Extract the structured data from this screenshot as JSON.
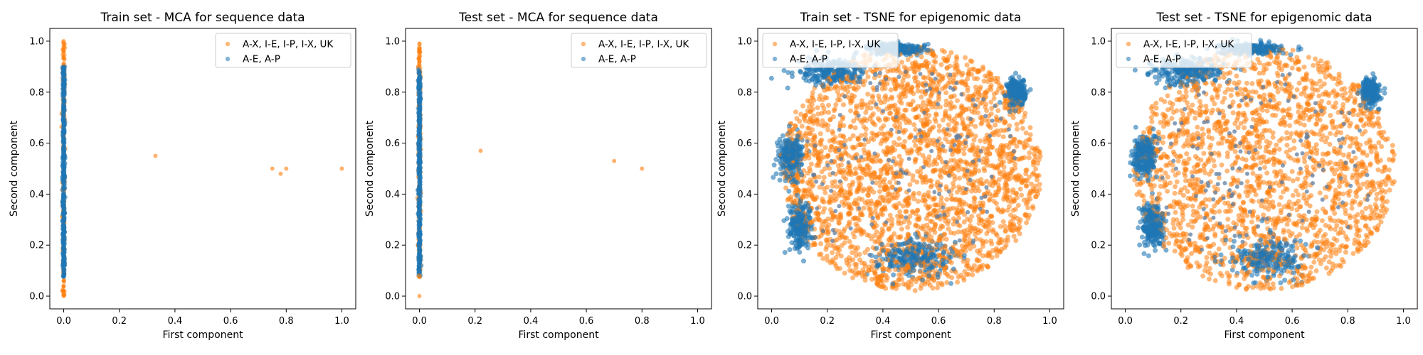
{
  "colors": {
    "orange": "#ff7f0e",
    "blue": "#1f77b4"
  },
  "legend_entries": [
    "A-X, I-E, I-P, I-X, UK",
    "A-E, A-P"
  ],
  "chart_data": [
    {
      "type": "scatter",
      "title": "Train set - MCA for sequence data",
      "xlabel": "First component",
      "ylabel": "Second component",
      "xlim": [
        -0.05,
        1.05
      ],
      "ylim": [
        -0.05,
        1.05
      ],
      "xticks": [
        "0.0",
        "0.2",
        "0.4",
        "0.6",
        "0.8",
        "1.0"
      ],
      "yticks": [
        "0.0",
        "0.2",
        "0.4",
        "0.6",
        "0.8",
        "1.0"
      ],
      "legend_position": "top-right",
      "series": [
        {
          "name": "A-X, I-E, I-P, I-X, UK",
          "color": "#ff7f0e",
          "points": [
            [
              0.0,
              0.0
            ],
            [
              0.0,
              0.02
            ],
            [
              0.0,
              0.04
            ],
            [
              0.0,
              0.06
            ],
            [
              0.0,
              0.94
            ],
            [
              0.0,
              0.96
            ],
            [
              0.0,
              0.98
            ],
            [
              0.0,
              1.0
            ],
            [
              0.33,
              0.55
            ],
            [
              0.75,
              0.5
            ],
            [
              0.78,
              0.48
            ],
            [
              0.8,
              0.5
            ],
            [
              1.0,
              0.5
            ]
          ],
          "band": {
            "x": 0.0,
            "y_range": [
              0.0,
              1.0
            ],
            "density": "high"
          }
        },
        {
          "name": "A-E, A-P",
          "color": "#1f77b4",
          "points": [],
          "band": {
            "x": 0.0,
            "y_range": [
              0.07,
              0.9
            ],
            "density": "high"
          }
        }
      ]
    },
    {
      "type": "scatter",
      "title": "Test set - MCA for sequence data",
      "xlabel": "First component",
      "ylabel": "Second component",
      "xlim": [
        -0.05,
        1.05
      ],
      "ylim": [
        -0.05,
        1.05
      ],
      "xticks": [
        "0.0",
        "0.2",
        "0.4",
        "0.6",
        "0.8",
        "1.0"
      ],
      "yticks": [
        "0.0",
        "0.2",
        "0.4",
        "0.6",
        "0.8",
        "1.0"
      ],
      "legend_position": "top-right",
      "series": [
        {
          "name": "A-X, I-E, I-P, I-X, UK",
          "color": "#ff7f0e",
          "points": [
            [
              0.0,
              0.0
            ],
            [
              0.0,
              0.08
            ],
            [
              0.0,
              0.92
            ],
            [
              0.0,
              0.96
            ],
            [
              0.0,
              0.99
            ],
            [
              0.22,
              0.57
            ],
            [
              0.7,
              0.53
            ],
            [
              0.8,
              0.5
            ]
          ],
          "band": {
            "x": 0.0,
            "y_range": [
              0.07,
              0.99
            ],
            "density": "high"
          }
        },
        {
          "name": "A-E, A-P",
          "color": "#1f77b4",
          "points": [],
          "band": {
            "x": 0.0,
            "y_range": [
              0.08,
              0.89
            ],
            "density": "high"
          }
        }
      ]
    },
    {
      "type": "scatter",
      "title": "Train set - TSNE for epigenomic data",
      "xlabel": "First component",
      "ylabel": "Second component",
      "xlim": [
        -0.05,
        1.05
      ],
      "ylim": [
        -0.05,
        1.05
      ],
      "xticks": [
        "0.0",
        "0.2",
        "0.4",
        "0.6",
        "0.8",
        "1.0"
      ],
      "yticks": [
        "0.0",
        "0.2",
        "0.4",
        "0.6",
        "0.8",
        "1.0"
      ],
      "legend_position": "top-left",
      "series": [
        {
          "name": "A-X, I-E, I-P, I-X, UK",
          "color": "#ff7f0e",
          "cloud": {
            "center": [
              0.5,
              0.5
            ],
            "radius": 0.47,
            "density": "very high"
          }
        },
        {
          "name": "A-E, A-P",
          "color": "#1f77b4",
          "clusters": [
            {
              "center": [
                0.22,
                0.88
              ],
              "spread": [
                0.12,
                0.05
              ]
            },
            {
              "center": [
                0.07,
                0.55
              ],
              "spread": [
                0.04,
                0.08
              ]
            },
            {
              "center": [
                0.1,
                0.28
              ],
              "spread": [
                0.04,
                0.08
              ]
            },
            {
              "center": [
                0.52,
                0.15
              ],
              "spread": [
                0.12,
                0.07
              ]
            },
            {
              "center": [
                0.88,
                0.8
              ],
              "spread": [
                0.03,
                0.05
              ]
            },
            {
              "center": [
                0.45,
                0.97
              ],
              "spread": [
                0.1,
                0.02
              ]
            }
          ]
        }
      ]
    },
    {
      "type": "scatter",
      "title": "Test set - TSNE for epigenomic data",
      "xlabel": "First component",
      "ylabel": "Second component",
      "xlim": [
        -0.05,
        1.05
      ],
      "ylim": [
        -0.05,
        1.05
      ],
      "xticks": [
        "0.0",
        "0.2",
        "0.4",
        "0.6",
        "0.8",
        "1.0"
      ],
      "yticks": [
        "0.0",
        "0.2",
        "0.4",
        "0.6",
        "0.8",
        "1.0"
      ],
      "legend_position": "top-left",
      "series": [
        {
          "name": "A-X, I-E, I-P, I-X, UK",
          "color": "#ff7f0e",
          "cloud": {
            "center": [
              0.5,
              0.5
            ],
            "radius": 0.47,
            "density": "high"
          }
        },
        {
          "name": "A-E, A-P",
          "color": "#1f77b4",
          "clusters": [
            {
              "center": [
                0.22,
                0.88
              ],
              "spread": [
                0.12,
                0.05
              ]
            },
            {
              "center": [
                0.07,
                0.55
              ],
              "spread": [
                0.04,
                0.08
              ]
            },
            {
              "center": [
                0.1,
                0.28
              ],
              "spread": [
                0.04,
                0.08
              ]
            },
            {
              "center": [
                0.52,
                0.15
              ],
              "spread": [
                0.12,
                0.07
              ]
            },
            {
              "center": [
                0.88,
                0.8
              ],
              "spread": [
                0.03,
                0.05
              ]
            },
            {
              "center": [
                0.45,
                0.97
              ],
              "spread": [
                0.1,
                0.02
              ]
            }
          ]
        }
      ]
    }
  ]
}
